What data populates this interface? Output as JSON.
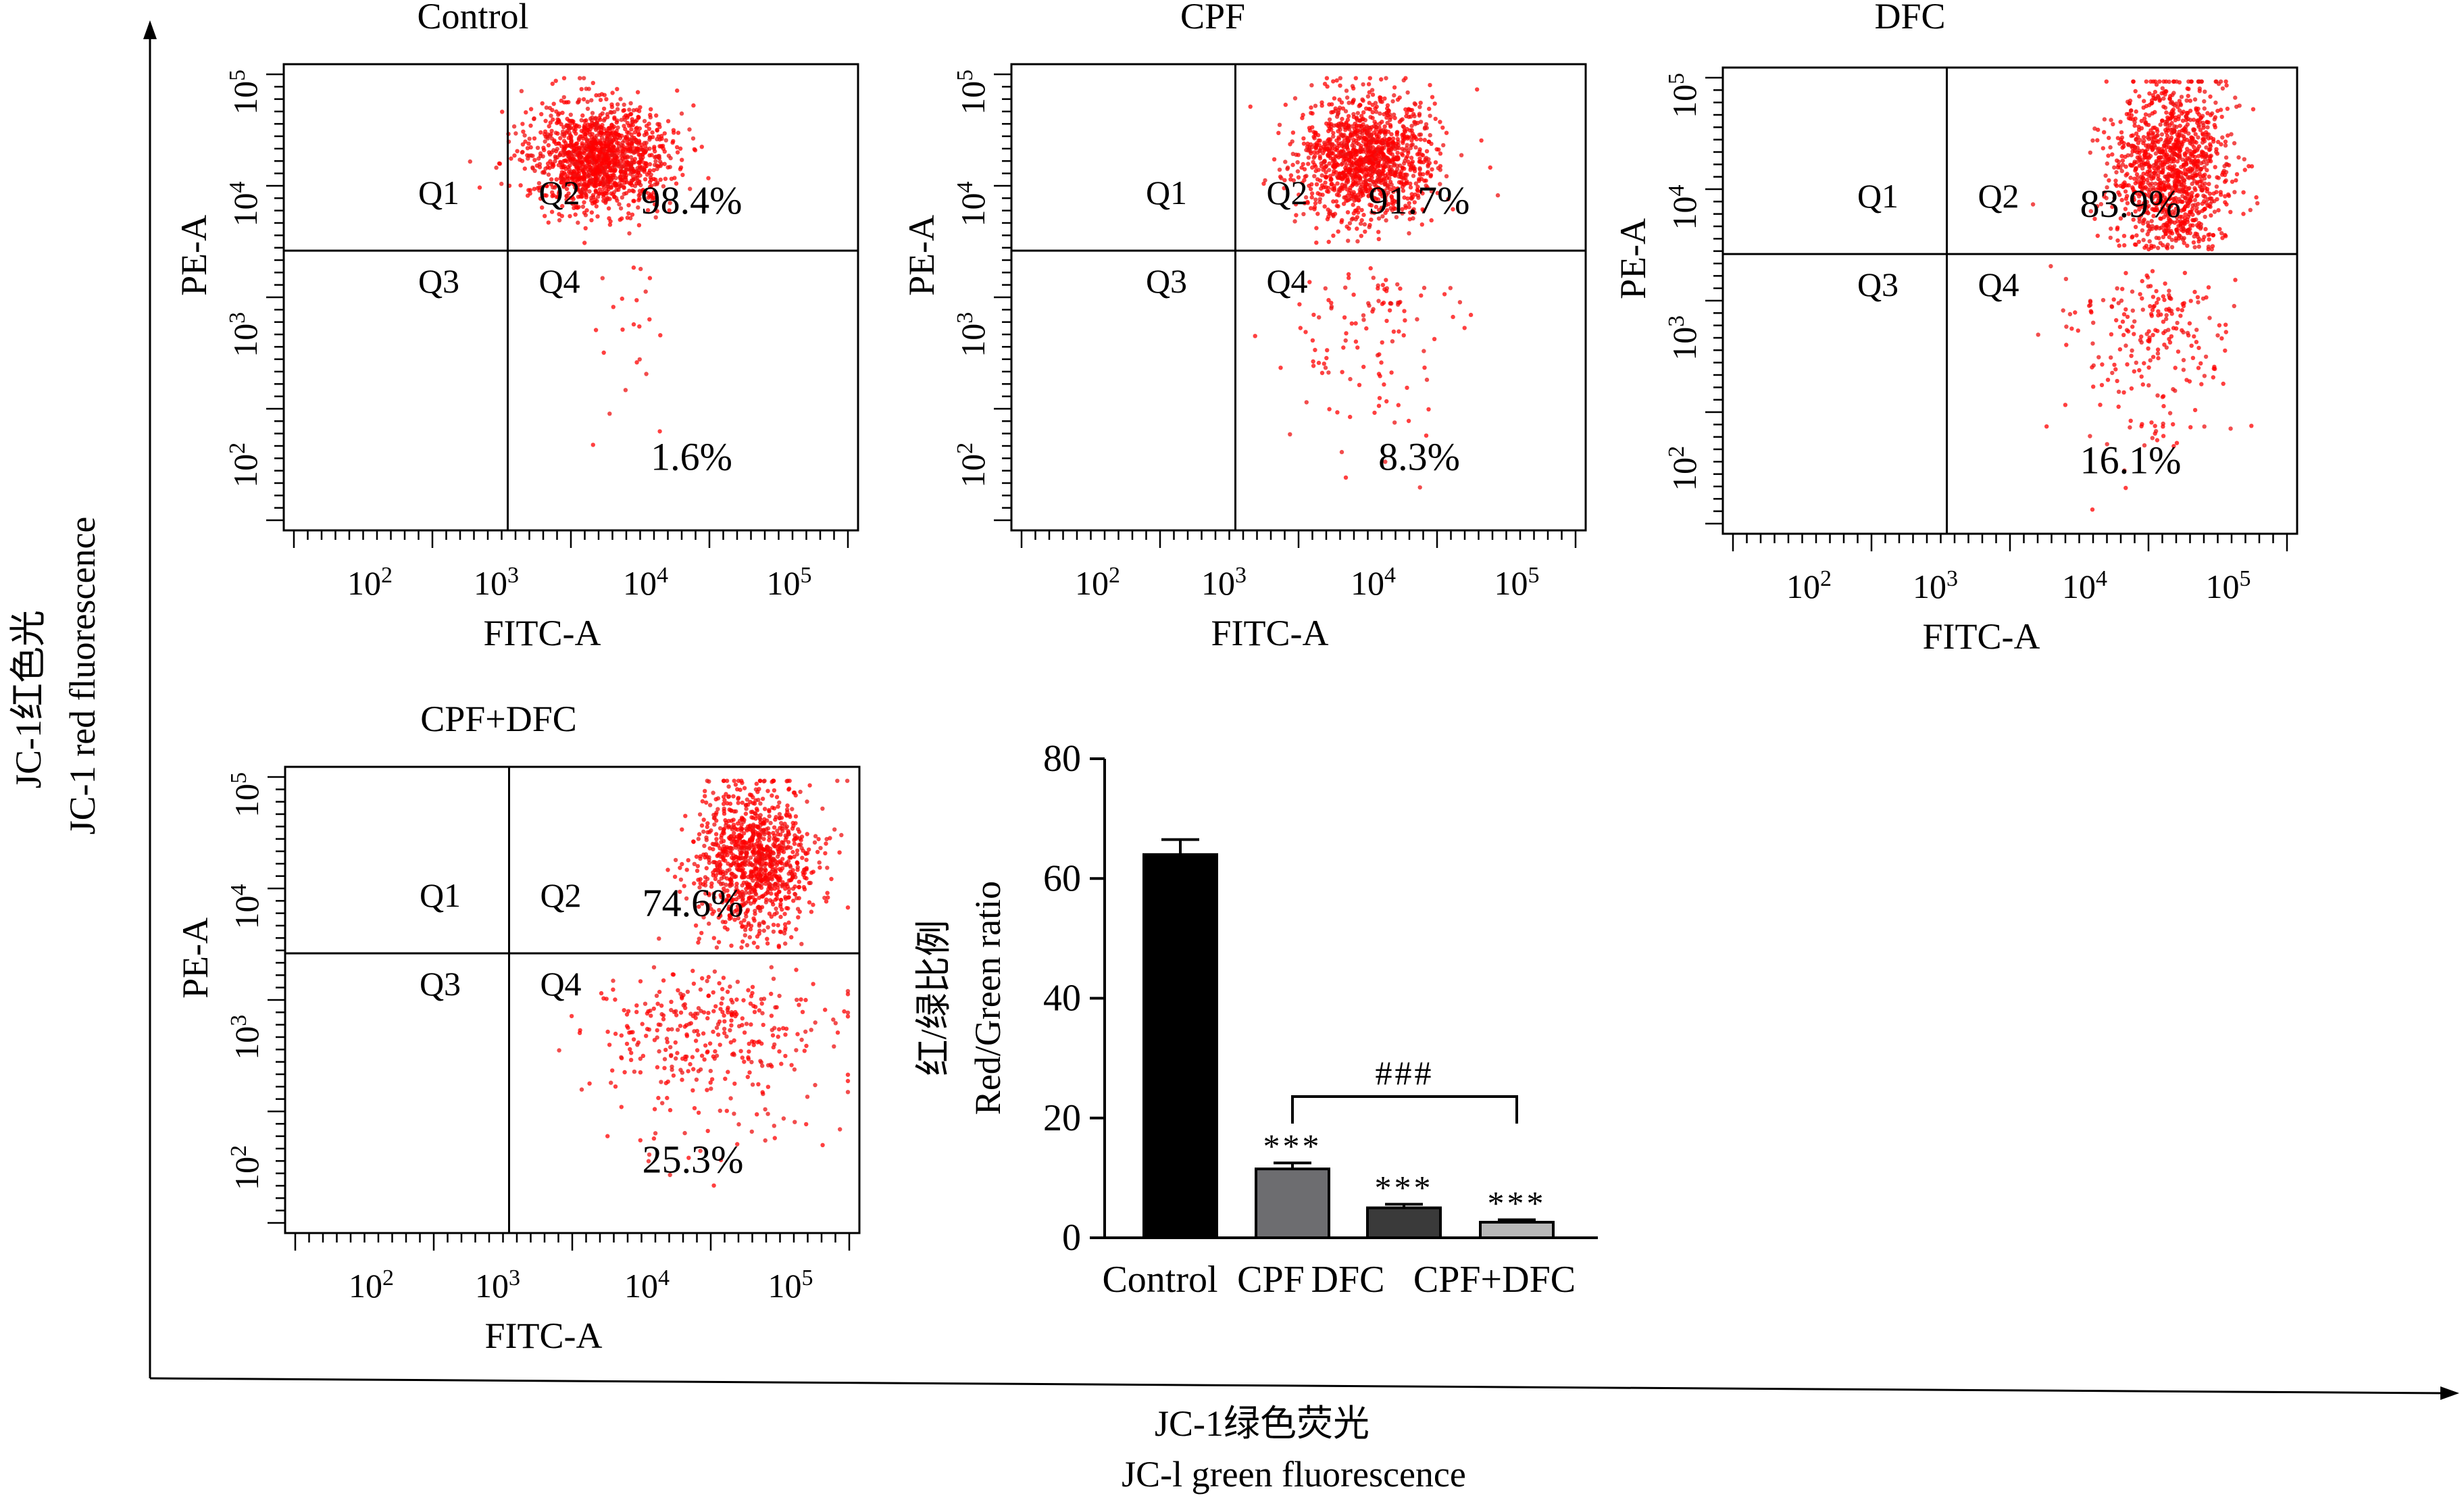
{
  "outer": {
    "y_label_cn": "JC-1红色光",
    "y_label_en": "JC-1 red fluorescence",
    "x_label_cn": "JC-1绿色荧光",
    "x_label_en": "JC-l green fluorescence"
  },
  "flow_panels": [
    {
      "title": "Control",
      "xlabel": "FITC-A",
      "ylabel": "PE-A",
      "x_ticks": [
        "10^2",
        "10^3",
        "10^4",
        "10^5"
      ],
      "y_ticks": [
        "10^2",
        "10^3",
        "10^4",
        "10^5"
      ],
      "quadrants": [
        "Q1",
        "Q2",
        "Q3",
        "Q4"
      ],
      "q2_percent": "98.4%",
      "q4_percent": "1.6%",
      "upper_fraction": 0.984
    },
    {
      "title": "CPF",
      "xlabel": "FITC-A",
      "ylabel": "PE-A",
      "x_ticks": [
        "10^2",
        "10^3",
        "10^4",
        "10^5"
      ],
      "y_ticks": [
        "10^2",
        "10^3",
        "10^4",
        "10^5"
      ],
      "quadrants": [
        "Q1",
        "Q2",
        "Q3",
        "Q4"
      ],
      "q2_percent": "91.7%",
      "q4_percent": "8.3%",
      "upper_fraction": 0.917
    },
    {
      "title": "DFC",
      "xlabel": "FITC-A",
      "ylabel": "PE-A",
      "x_ticks": [
        "10^2",
        "10^3",
        "10^4",
        "10^5"
      ],
      "y_ticks": [
        "10^2",
        "10^3",
        "10^4",
        "10^5"
      ],
      "quadrants": [
        "Q1",
        "Q2",
        "Q3",
        "Q4"
      ],
      "q2_percent": "83.9%",
      "q4_percent": "16.1%",
      "upper_fraction": 0.839
    },
    {
      "title": "CPF+DFC",
      "xlabel": "FITC-A",
      "ylabel": "PE-A",
      "x_ticks": [
        "10^2",
        "10^3",
        "10^4",
        "10^5"
      ],
      "y_ticks": [
        "10^2",
        "10^3",
        "10^4",
        "10^5"
      ],
      "quadrants": [
        "Q1",
        "Q2",
        "Q3",
        "Q4"
      ],
      "q2_percent": "74.6%",
      "q4_percent": "25.3%",
      "upper_fraction": 0.746
    }
  ],
  "colors": {
    "dots": "#ee1111",
    "dots_dense": "#ff0000",
    "gate": "#000000",
    "bar_control": "#000000",
    "bar_cpf": "#6d6d70",
    "bar_dfc": "#3a3a3a",
    "bar_cpf_dfc": "#b8b8b8"
  },
  "chart_data": {
    "type": "bar",
    "ylabel_cn": "红/绿比例",
    "ylabel_en": "Red/Green ratio",
    "categories": [
      "Control",
      "CPF",
      "DFC",
      "CPF+DFC"
    ],
    "values": [
      64,
      11.5,
      5,
      2.6
    ],
    "errors": [
      2.5,
      1.0,
      0.6,
      0.4
    ],
    "ylim": [
      0,
      80
    ],
    "y_ticks": [
      "0",
      "20",
      "40",
      "60",
      "80"
    ],
    "significance": [
      "",
      "***",
      "***",
      "***"
    ],
    "bracket_label": "###",
    "bracket_between": [
      "CPF",
      "CPF+DFC"
    ]
  }
}
